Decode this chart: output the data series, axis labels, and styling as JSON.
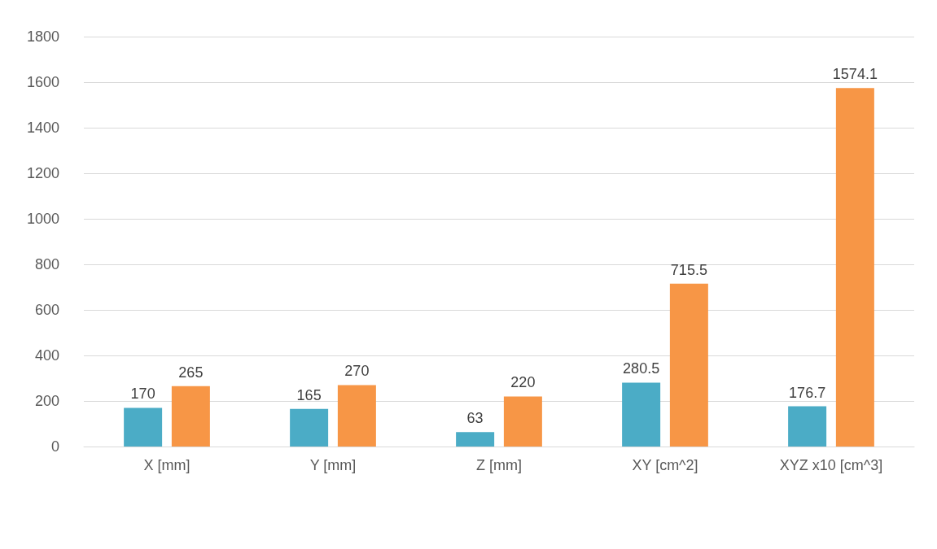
{
  "chart_data": {
    "type": "bar",
    "categories": [
      "X [mm]",
      "Y [mm]",
      "Z [mm]",
      "XY [cm^2]",
      "XYZ x10 [cm^3]"
    ],
    "series": [
      {
        "color": "#4bacc6",
        "values": [
          170,
          165,
          63,
          280.5,
          176.7
        ]
      },
      {
        "color": "#f79646",
        "values": [
          265,
          270,
          220,
          715.5,
          1574.1
        ]
      }
    ],
    "ylim": [
      0,
      1800
    ],
    "yticks": [
      0,
      200,
      400,
      600,
      800,
      1000,
      1200,
      1400,
      1600,
      1800
    ],
    "grid": "y",
    "data_labels": true
  }
}
